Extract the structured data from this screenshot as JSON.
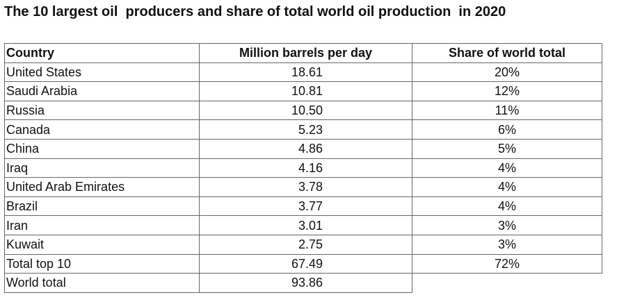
{
  "header": {
    "title": "The 10 largest oil  producers and share of total world oil production  in 2020"
  },
  "table": {
    "columns": [
      "Country",
      "Million barrels per day",
      "Share of world total"
    ],
    "rows": [
      [
        "United States",
        "18.61",
        "20%"
      ],
      [
        "Saudi Arabia",
        "10.81",
        "12%"
      ],
      [
        "Russia",
        "10.50",
        "11%"
      ],
      [
        "Canada",
        "5.23",
        "6%"
      ],
      [
        "China",
        "4.86",
        "5%"
      ],
      [
        "Iraq",
        "4.16",
        "4%"
      ],
      [
        "United Arab Emirates",
        "3.78",
        "4%"
      ],
      [
        "Brazil",
        "3.77",
        "4%"
      ],
      [
        "Iran",
        "3.01",
        "3%"
      ],
      [
        "Kuwait",
        "2.75",
        "3%"
      ],
      [
        "Total top 10",
        "67.49",
        "72%"
      ],
      [
        "World total",
        "93.86"
      ]
    ]
  }
}
